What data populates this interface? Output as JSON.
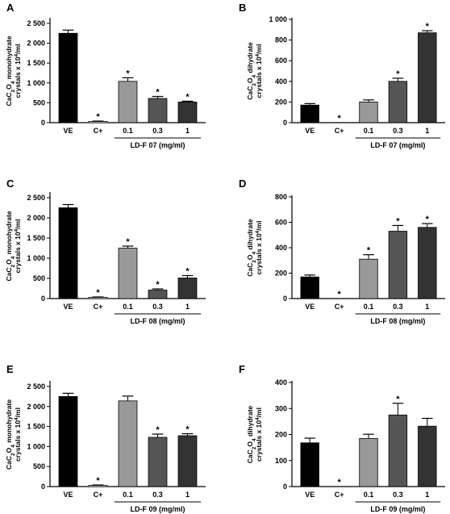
{
  "chart_data": [
    {
      "panel": "A",
      "type": "bar",
      "categories": [
        "VE",
        "C+",
        "0.1",
        "0.3",
        "1"
      ],
      "values": [
        2250,
        30,
        1040,
        610,
        520
      ],
      "errors": [
        80,
        10,
        90,
        50,
        20
      ],
      "significant": [
        false,
        true,
        true,
        true,
        true
      ],
      "ylabel_line1": "CaC2O4 monohydrate",
      "ylabel_line2": "crystals x 10^4/ml",
      "ylim": [
        0,
        2600
      ],
      "yticks": [
        0,
        500,
        1000,
        1500,
        2000,
        2500
      ],
      "ytick_labels": [
        "0",
        "500",
        "1 000",
        "1 500",
        "2 000",
        "2 500"
      ],
      "group_label": "LD-F 07 (mg/ml)",
      "colors": [
        "#000000",
        "#ffffff",
        "#999999",
        "#555555",
        "#333333"
      ]
    },
    {
      "panel": "B",
      "type": "bar",
      "categories": [
        "VE",
        "C+",
        "0.1",
        "0.3",
        "1"
      ],
      "values": [
        170,
        0,
        200,
        400,
        870
      ],
      "errors": [
        15,
        0,
        20,
        30,
        20
      ],
      "significant": [
        false,
        true,
        false,
        true,
        true
      ],
      "ylabel_line1": "CaC2O4 dihydrate",
      "ylabel_line2": "crystals x 10^4/ml",
      "ylim": [
        0,
        1000
      ],
      "yticks": [
        0,
        200,
        400,
        600,
        800,
        1000
      ],
      "ytick_labels": [
        "0",
        "200",
        "400",
        "600",
        "800",
        "1 000"
      ],
      "group_label": "LD-F 07 (mg/ml)",
      "colors": [
        "#000000",
        "#ffffff",
        "#999999",
        "#555555",
        "#333333"
      ]
    },
    {
      "panel": "C",
      "type": "bar",
      "categories": [
        "VE",
        "C+",
        "0.1",
        "0.3",
        "1"
      ],
      "values": [
        2250,
        30,
        1250,
        210,
        510
      ],
      "errors": [
        80,
        10,
        50,
        30,
        60
      ],
      "significant": [
        false,
        true,
        true,
        true,
        true
      ],
      "ylabel_line1": "CaC2O4 monohydrate",
      "ylabel_line2": "crystals x 10^4/ml",
      "ylim": [
        0,
        2600
      ],
      "yticks": [
        0,
        500,
        1000,
        1500,
        2000,
        2500
      ],
      "ytick_labels": [
        "0",
        "500",
        "1 000",
        "1 500",
        "2 000",
        "2 500"
      ],
      "group_label": "LD-F 08 (mg/ml)",
      "colors": [
        "#000000",
        "#ffffff",
        "#999999",
        "#555555",
        "#333333"
      ]
    },
    {
      "panel": "D",
      "type": "bar",
      "categories": [
        "VE",
        "C+",
        "0.1",
        "0.3",
        "1"
      ],
      "values": [
        170,
        0,
        310,
        530,
        560
      ],
      "errors": [
        15,
        0,
        35,
        45,
        30
      ],
      "significant": [
        false,
        true,
        true,
        true,
        true
      ],
      "ylabel_line1": "CaC2O4 dihydrate",
      "ylabel_line2": "crystals x 10^4/ml",
      "ylim": [
        0,
        800
      ],
      "yticks": [
        0,
        200,
        400,
        600,
        800
      ],
      "ytick_labels": [
        "0",
        "200",
        "400",
        "600",
        "800"
      ],
      "group_label": "LD-F 08 (mg/ml)",
      "colors": [
        "#000000",
        "#ffffff",
        "#999999",
        "#555555",
        "#333333"
      ]
    },
    {
      "panel": "E",
      "type": "bar",
      "categories": [
        "VE",
        "C+",
        "0.1",
        "0.3",
        "1"
      ],
      "values": [
        2250,
        30,
        2140,
        1230,
        1270
      ],
      "errors": [
        80,
        10,
        120,
        80,
        50
      ],
      "significant": [
        false,
        true,
        false,
        true,
        true
      ],
      "ylabel_line1": "CaC2O4 monohydrate",
      "ylabel_line2": "crystals x 10^4/ml",
      "ylim": [
        0,
        2600
      ],
      "yticks": [
        0,
        500,
        1000,
        1500,
        2000,
        2500
      ],
      "ytick_labels": [
        "0",
        "500",
        "1 000",
        "1 500",
        "2 000",
        "2 500"
      ],
      "group_label": "LD-F 09 (mg/ml)",
      "colors": [
        "#000000",
        "#ffffff",
        "#999999",
        "#555555",
        "#333333"
      ]
    },
    {
      "panel": "F",
      "type": "bar",
      "categories": [
        "VE",
        "C+",
        "0.1",
        "0.3",
        "1"
      ],
      "values": [
        168,
        0,
        185,
        275,
        232
      ],
      "errors": [
        18,
        0,
        16,
        45,
        30
      ],
      "significant": [
        false,
        true,
        false,
        true,
        false
      ],
      "ylabel_line1": "CaC2O4 dihydrate",
      "ylabel_line2": "crystals x 10^4/ml",
      "ylim": [
        0,
        400
      ],
      "yticks": [
        0,
        100,
        200,
        300,
        400
      ],
      "ytick_labels": [
        "0",
        "100",
        "200",
        "300",
        "400"
      ],
      "group_label": "LD-F 09 (mg/ml)",
      "colors": [
        "#000000",
        "#ffffff",
        "#999999",
        "#555555",
        "#333333"
      ]
    }
  ]
}
